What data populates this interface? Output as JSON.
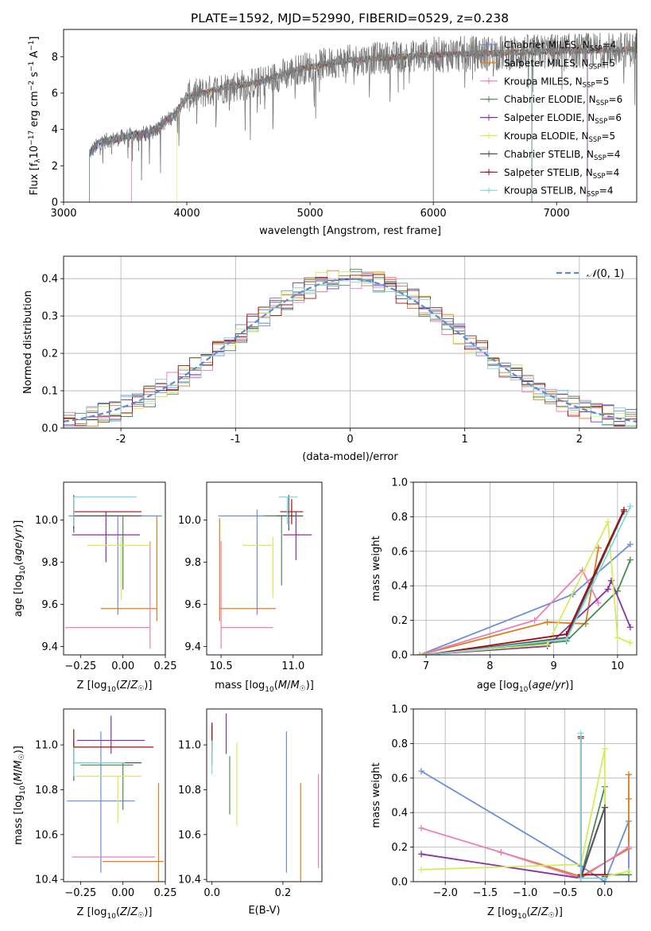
{
  "title": "PLATE=1592, MJD=52990, FIBERID=0529, z=0.238",
  "colors": [
    "#6a8fd8",
    "#e07b1e",
    "#e87fb8",
    "#4d8a4d",
    "#8b2fa6",
    "#d4ec5a",
    "#555555",
    "#9b0f0f",
    "#7fd6e0"
  ],
  "legend_labels": [
    {
      "base": "Chabrier MILES, N",
      "sub": "SSP",
      "tail": "=4"
    },
    {
      "base": "Salpeter MILES, N",
      "sub": "SSP",
      "tail": "=5"
    },
    {
      "base": "Kroupa MILES, N",
      "sub": "SSP",
      "tail": "=5"
    },
    {
      "base": "Chabrier ELODIE, N",
      "sub": "SSP",
      "tail": "=6"
    },
    {
      "base": "Salpeter ELODIE, N",
      "sub": "SSP",
      "tail": "=6"
    },
    {
      "base": "Kroupa ELODIE, N",
      "sub": "SSP",
      "tail": "=5"
    },
    {
      "base": "Chabrier STELIB, N",
      "sub": "SSP",
      "tail": "=4"
    },
    {
      "base": "Salpeter STELIB, N",
      "sub": "SSP",
      "tail": "=4"
    },
    {
      "base": "Kroupa STELIB, N",
      "sub": "SSP",
      "tail": "=4"
    }
  ],
  "chart_data": [
    {
      "id": "spectrum",
      "type": "line",
      "xlabel": "wavelength [Angstrom, rest frame]",
      "ylabel": "Flux [f_λ 10^-17 erg cm^-2 s^-1 A^-1]",
      "xlim": [
        3000,
        7650
      ],
      "ylim": [
        0,
        9.5
      ],
      "xticks": [
        3000,
        4000,
        5000,
        6000,
        7000
      ],
      "yticks": [
        0,
        2,
        4,
        6,
        8
      ],
      "grid": false,
      "legend": "top-right",
      "continuum": [
        [
          3210,
          2.7
        ],
        [
          3300,
          3.3
        ],
        [
          3500,
          3.6
        ],
        [
          3700,
          3.8
        ],
        [
          3900,
          4.8
        ],
        [
          4000,
          5.8
        ],
        [
          4300,
          6.3
        ],
        [
          4600,
          6.6
        ],
        [
          4900,
          7.3
        ],
        [
          5200,
          7.7
        ],
        [
          5500,
          7.9
        ],
        [
          6000,
          8.1
        ],
        [
          6500,
          8.2
        ],
        [
          7000,
          8.3
        ],
        [
          7650,
          8.4
        ]
      ],
      "model_starts": [
        3210,
        3550,
        3550,
        3210,
        3210,
        3920,
        3210,
        3210,
        3210
      ],
      "model_drops": [
        [
          6800,
          0
        ],
        [
          6800,
          0
        ],
        [
          7250,
          0
        ],
        [
          6800,
          0
        ],
        [
          7250,
          0
        ],
        [
          6800,
          0
        ],
        [
          6000,
          0
        ],
        [
          6800,
          0
        ],
        [
          6800,
          0
        ]
      ]
    },
    {
      "id": "residuals",
      "type": "histogram",
      "xlabel": "(data-model)/error",
      "ylabel": "Normed distribution",
      "xlim": [
        -2.5,
        2.5
      ],
      "ylim": [
        0,
        0.46
      ],
      "xticks": [
        -2,
        -1,
        0,
        1,
        2
      ],
      "yticks": [
        0,
        0.1,
        0.2,
        0.3,
        0.4
      ],
      "grid": true,
      "legend": "top-right",
      "reference_curve": "N(0,1)",
      "bin_width": 0.1,
      "bins": 50
    },
    {
      "id": "age_vs_Z",
      "type": "errorbar",
      "xlabel": "Z [log10(Z/Z☉)]",
      "ylabel": "age  [log10(age/yr)]",
      "xlim": [
        -0.35,
        0.25
      ],
      "ylim": [
        9.36,
        10.18
      ],
      "xticks": [
        -0.25,
        0.0,
        0.25
      ],
      "xticklabels": [
        "−0.25",
        "0.00",
        "0.25"
      ],
      "yticks": [
        9.4,
        9.6,
        9.8,
        10.0
      ],
      "points": [
        {
          "x": -0.03,
          "xerr": [
            0.29,
            0.26
          ],
          "y": 10.02,
          "yerr": [
            0.47,
            0.0
          ]
        },
        {
          "x": 0.2,
          "xerr": [
            0.33,
            0.0
          ],
          "y": 9.58,
          "yerr": [
            0.06,
            0.44
          ]
        },
        {
          "x": 0.16,
          "xerr": [
            0.5,
            0.0
          ],
          "y": 9.49,
          "yerr": [
            0.1,
            0.41
          ]
        },
        {
          "x": 0.0,
          "xerr": [
            0.26,
            0.04
          ],
          "y": 10.02,
          "yerr": [
            0.35,
            0.0
          ]
        },
        {
          "x": -0.1,
          "xerr": [
            0.2,
            0.2
          ],
          "y": 9.93,
          "yerr": [
            0.13,
            0.11
          ]
        },
        {
          "x": -0.01,
          "xerr": [
            0.2,
            0.18
          ],
          "y": 9.88,
          "yerr": [
            0.26,
            0.04
          ]
        },
        {
          "x": -0.29,
          "xerr": [
            0.0,
            0.4
          ],
          "y": 10.02,
          "yerr": [
            0.08,
            0.1
          ]
        },
        {
          "x": -0.29,
          "xerr": [
            0.0,
            0.4
          ],
          "y": 10.04,
          "yerr": [
            0.08,
            0.06
          ]
        },
        {
          "x": -0.29,
          "xerr": [
            0.0,
            0.37
          ],
          "y": 10.11,
          "yerr": [
            0.14,
            0.0
          ]
        }
      ]
    },
    {
      "id": "age_vs_mass",
      "type": "errorbar",
      "xlabel": "mass [log10(M/M☉)]",
      "ylabel": "",
      "xlim": [
        10.4,
        11.2
      ],
      "ylim": [
        9.36,
        10.18
      ],
      "xticks": [
        10.5,
        11.0
      ],
      "xticklabels": [
        "10.5",
        "11.0"
      ],
      "yticks": [
        9.4,
        9.6,
        9.8,
        10.0
      ],
      "points": [
        {
          "x": 10.75,
          "xerr": [
            0.27,
            0.2
          ],
          "y": 10.02,
          "yerr": [
            0.47,
            0.03
          ]
        },
        {
          "x": 10.49,
          "xerr": [
            0.0,
            0.39
          ],
          "y": 9.58,
          "yerr": [
            0.06,
            0.43
          ]
        },
        {
          "x": 10.5,
          "xerr": [
            0.0,
            0.36
          ],
          "y": 9.49,
          "yerr": [
            0.1,
            0.41
          ]
        },
        {
          "x": 10.92,
          "xerr": [
            0.12,
            0.09
          ],
          "y": 10.02,
          "yerr": [
            0.33,
            0.0
          ]
        },
        {
          "x": 11.02,
          "xerr": [
            0.09,
            0.11
          ],
          "y": 9.93,
          "yerr": [
            0.12,
            0.11
          ]
        },
        {
          "x": 10.86,
          "xerr": [
            0.21,
            0.0
          ],
          "y": 9.88,
          "yerr": [
            0.25,
            0.04
          ]
        },
        {
          "x": 10.97,
          "xerr": [
            0.08,
            0.1
          ],
          "y": 10.02,
          "yerr": [
            0.07,
            0.1
          ]
        },
        {
          "x": 10.99,
          "xerr": [
            0.08,
            0.08
          ],
          "y": 10.04,
          "yerr": [
            0.06,
            0.06
          ]
        },
        {
          "x": 10.96,
          "xerr": [
            0.06,
            0.07
          ],
          "y": 10.11,
          "yerr": [
            0.13,
            0.0
          ]
        }
      ]
    },
    {
      "id": "weight_vs_age",
      "type": "line",
      "xlabel": "age  [log10(age/yr)]",
      "ylabel": "mass weight",
      "xlim": [
        6.8,
        10.3
      ],
      "ylim": [
        0,
        1.0
      ],
      "xticks": [
        7,
        8,
        9,
        10
      ],
      "yticks": [
        0,
        0.2,
        0.4,
        0.6,
        0.8,
        1.0
      ],
      "grid": true,
      "series": [
        {
          "x": [
            6.9,
            9.3,
            10.2
          ],
          "y": [
            0.0,
            0.35,
            0.64
          ]
        },
        {
          "x": [
            6.9,
            8.9,
            9.5,
            9.7
          ],
          "y": [
            0.0,
            0.19,
            0.18,
            0.62
          ]
        },
        {
          "x": [
            6.9,
            8.7,
            9.45,
            9.7
          ],
          "y": [
            0.0,
            0.2,
            0.49,
            0.3
          ]
        },
        {
          "x": [
            7.0,
            9.2,
            10.0,
            10.2
          ],
          "y": [
            0.0,
            0.08,
            0.37,
            0.55
          ]
        },
        {
          "x": [
            6.9,
            8.9,
            9.85,
            9.9,
            10.2
          ],
          "y": [
            0.0,
            0.05,
            0.38,
            0.43,
            0.16
          ]
        },
        {
          "x": [
            6.9,
            8.9,
            9.85,
            10.0,
            10.2
          ],
          "y": [
            0.0,
            0.06,
            0.77,
            0.1,
            0.07
          ]
        },
        {
          "x": [
            7.0,
            9.2,
            10.1
          ],
          "y": [
            0.0,
            0.1,
            0.83
          ]
        },
        {
          "x": [
            7.0,
            9.2,
            10.1
          ],
          "y": [
            0.0,
            0.12,
            0.84
          ]
        },
        {
          "x": [
            7.0,
            9.2,
            10.2
          ],
          "y": [
            0.0,
            0.09,
            0.86
          ]
        }
      ]
    },
    {
      "id": "mass_vs_Z",
      "type": "errorbar",
      "xlabel": "Z [log10(Z/Z☉)]",
      "ylabel": "mass [log10(M/M☉)]",
      "xlim": [
        -0.35,
        0.25
      ],
      "ylim": [
        10.39,
        11.16
      ],
      "xticks": [
        -0.25,
        0.0,
        0.25
      ],
      "xticklabels": [
        "−0.25",
        "0.00",
        "0.25"
      ],
      "yticks": [
        10.4,
        10.6,
        10.8,
        11.0
      ],
      "points": [
        {
          "x": -0.13,
          "xerr": [
            0.2,
            0.2
          ],
          "y": 10.75,
          "yerr": [
            0.32,
            0.31
          ]
        },
        {
          "x": 0.21,
          "xerr": [
            0.33,
            0.03
          ],
          "y": 10.48,
          "yerr": [
            0.09,
            0.35
          ]
        },
        {
          "x": -0.05,
          "xerr": [
            0.25,
            0.24
          ],
          "y": 10.5,
          "yerr": [
            0.0,
            0.0
          ]
        },
        {
          "x": 0.0,
          "xerr": [
            0.25,
            0.06
          ],
          "y": 10.91,
          "yerr": [
            0.2,
            0.01
          ]
        },
        {
          "x": -0.07,
          "xerr": [
            0.2,
            0.2
          ],
          "y": 11.02,
          "yerr": [
            0.06,
            0.11
          ]
        },
        {
          "x": -0.03,
          "xerr": [
            0.25,
            0.14
          ],
          "y": 10.86,
          "yerr": [
            0.21,
            0.0
          ]
        },
        {
          "x": -0.29,
          "xerr": [
            0.0,
            0.4
          ],
          "y": 10.92,
          "yerr": [
            0.08,
            0.1
          ]
        },
        {
          "x": -0.29,
          "xerr": [
            0.0,
            0.47
          ],
          "y": 10.99,
          "yerr": [
            0.08,
            0.08
          ]
        },
        {
          "x": -0.29,
          "xerr": [
            0.0,
            0.3
          ],
          "y": 10.92,
          "yerr": [
            0.06,
            0.07
          ]
        }
      ]
    },
    {
      "id": "mass_vs_ebv",
      "type": "errorbar",
      "xlabel": "E(B-V)",
      "ylabel": "",
      "xlim": [
        -0.015,
        0.31
      ],
      "ylim": [
        10.39,
        11.16
      ],
      "xticks": [
        0.0,
        0.2
      ],
      "xticklabels": [
        "0.0",
        "0.2"
      ],
      "yticks": [
        10.4,
        10.6,
        10.8,
        11.0
      ],
      "points": [
        {
          "x": 0.21,
          "xerr": [
            0,
            0
          ],
          "y": 10.75,
          "yerr": [
            0.32,
            0.31
          ]
        },
        {
          "x": 0.25,
          "xerr": [
            0,
            0
          ],
          "y": 10.48,
          "yerr": [
            0.09,
            0.35
          ]
        },
        {
          "x": 0.3,
          "xerr": [
            0,
            0
          ],
          "y": 10.71,
          "yerr": [
            0.26,
            0.16
          ]
        },
        {
          "x": 0.05,
          "xerr": [
            0,
            0
          ],
          "y": 10.95,
          "yerr": [
            0.26,
            0.0
          ]
        },
        {
          "x": 0.04,
          "xerr": [
            0,
            0
          ],
          "y": 11.05,
          "yerr": [
            0.09,
            0.09
          ]
        },
        {
          "x": 0.07,
          "xerr": [
            0,
            0
          ],
          "y": 10.88,
          "yerr": [
            0.24,
            0.13
          ]
        },
        {
          "x": 0.0,
          "xerr": [
            0,
            0
          ],
          "y": 10.99,
          "yerr": [
            0.08,
            0.1
          ]
        },
        {
          "x": 0.0,
          "xerr": [
            0,
            0
          ],
          "y": 11.05,
          "yerr": [
            0.08,
            0.05
          ]
        },
        {
          "x": 0.0,
          "xerr": [
            0,
            0
          ],
          "y": 10.96,
          "yerr": [
            0.09,
            0.06
          ]
        }
      ]
    },
    {
      "id": "weight_vs_Z",
      "type": "line",
      "xlabel": "Z [log10(Z/Z☉)]",
      "ylabel": "mass weight",
      "xlim": [
        -2.4,
        0.4
      ],
      "ylim": [
        0,
        1.0
      ],
      "xticks": [
        -2.0,
        -1.5,
        -1.0,
        -0.5,
        0.0
      ],
      "xticklabels": [
        "−2.0",
        "−1.5",
        "−1.0",
        "−0.5",
        "0.0"
      ],
      "yticks": [
        0,
        0.2,
        0.4,
        0.6,
        0.8,
        1.0
      ],
      "grid": true,
      "series": [
        {
          "x": [
            -2.3,
            -0.3,
            0.0,
            0.3,
            0.3
          ],
          "y": [
            0.64,
            0.09,
            0.0,
            0.35,
            0.0
          ]
        },
        {
          "x": [
            -1.3,
            -0.3,
            0.3,
            0.3,
            0.3
          ],
          "y": [
            0.17,
            0.03,
            0.19,
            0.62,
            0.48
          ]
        },
        {
          "x": [
            -2.3,
            -1.3,
            -0.3,
            0.3
          ],
          "y": [
            0.31,
            0.17,
            0.02,
            0.2
          ]
        },
        {
          "x": [
            -0.3,
            0.0,
            0.0,
            0.3
          ],
          "y": [
            0.03,
            0.55,
            0.04,
            0.04
          ]
        },
        {
          "x": [
            -2.3,
            -0.3,
            0.0,
            0.0
          ],
          "y": [
            0.16,
            0.02,
            0.43,
            0.03
          ]
        },
        {
          "x": [
            -2.3,
            -0.3,
            0.0,
            0.0,
            0.3
          ],
          "y": [
            0.07,
            0.1,
            0.77,
            0.03,
            0.06
          ]
        },
        {
          "x": [
            -0.3,
            -0.3,
            0.0,
            0.0
          ],
          "y": [
            0.83,
            0.03,
            0.43,
            0.03
          ]
        },
        {
          "x": [
            -0.3,
            -0.3,
            0.0
          ],
          "y": [
            0.84,
            0.04,
            0.04
          ]
        },
        {
          "x": [
            -0.3,
            -0.3,
            0.0
          ],
          "y": [
            0.86,
            0.02,
            0.02
          ]
        }
      ]
    }
  ]
}
